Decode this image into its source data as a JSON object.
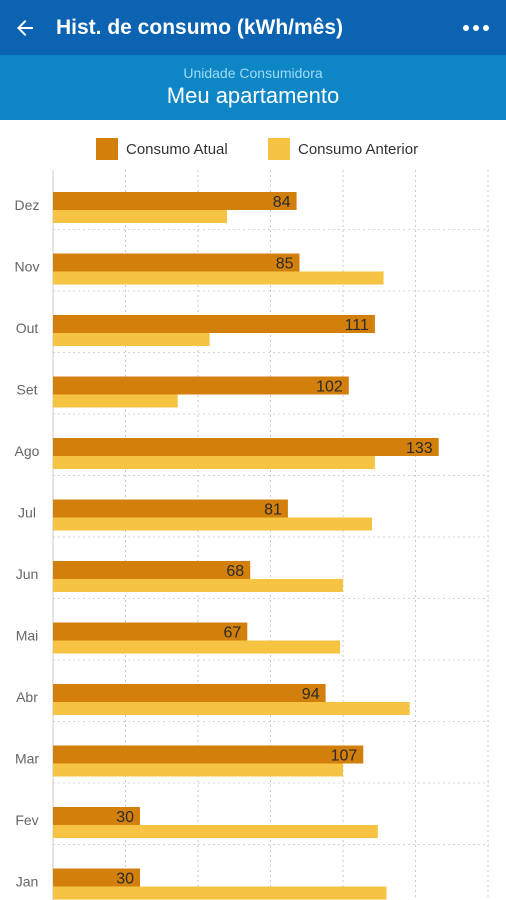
{
  "appbar": {
    "title": "Hist. de consumo (kWh/mês)",
    "back_icon": "arrow-left-icon",
    "menu_icon": "more-horizontal-icon",
    "color": "#0b63b1"
  },
  "subheader": {
    "label": "Unidade Consumidora",
    "title": "Meu apartamento",
    "color": "#0e86c6"
  },
  "chart_data": {
    "type": "bar",
    "orientation": "horizontal",
    "categories": [
      "Dez",
      "Nov",
      "Out",
      "Set",
      "Ago",
      "Jul",
      "Jun",
      "Mai",
      "Abr",
      "Mar",
      "Fev",
      "Jan"
    ],
    "series": [
      {
        "name": "Consumo Atual",
        "color": "#d2800b",
        "values": [
          84,
          85,
          111,
          102,
          133,
          81,
          68,
          67,
          94,
          107,
          30,
          30
        ],
        "labels": [
          "84",
          "85",
          "111",
          "102",
          "133",
          "81",
          "68",
          "67",
          "94",
          "107",
          "30",
          "30"
        ]
      },
      {
        "name": "Consumo Anterior",
        "color": "#f6c342",
        "values": [
          60,
          114,
          54,
          43,
          111,
          110,
          100,
          99,
          123,
          100,
          112,
          115
        ]
      }
    ],
    "xlim": [
      0,
      160
    ],
    "grid": true,
    "legend": "top"
  }
}
